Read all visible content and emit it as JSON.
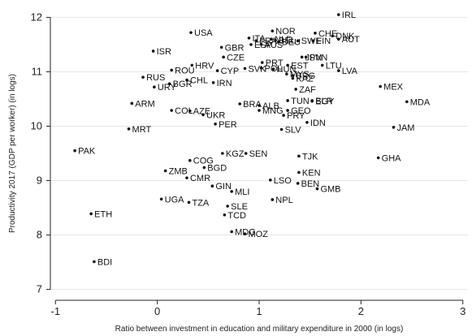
{
  "chart_data": {
    "type": "scatter",
    "title": "",
    "xlabel": "Ratio between investment in education and military expenditure in 2000 (in logs)",
    "ylabel": "Productivity 2017 (GDP per worker) (in logs)",
    "xlim": [
      -1.05,
      3.05
    ],
    "ylim": [
      6.8,
      12.2
    ],
    "xticks": [
      -1,
      0,
      1,
      2,
      3
    ],
    "yticks": [
      7,
      8,
      9,
      10,
      11,
      12
    ],
    "grid": true,
    "points": [
      {
        "label": "IRL",
        "x": 1.78,
        "y": 12.05
      },
      {
        "label": "NOR",
        "x": 1.13,
        "y": 11.75
      },
      {
        "label": "USA",
        "x": 0.33,
        "y": 11.72
      },
      {
        "label": "CHE",
        "x": 1.55,
        "y": 11.71
      },
      {
        "label": "DNK",
        "x": 1.72,
        "y": 11.66
      },
      {
        "label": "ITA",
        "x": 0.9,
        "y": 11.62
      },
      {
        "label": "NLD",
        "x": 1.12,
        "y": 11.6
      },
      {
        "label": "BEL",
        "x": 1.16,
        "y": 11.58
      },
      {
        "label": "AUT",
        "x": 1.78,
        "y": 11.6
      },
      {
        "label": "FRA",
        "x": 0.97,
        "y": 11.57
      },
      {
        "label": "SWE",
        "x": 1.38,
        "y": 11.57
      },
      {
        "label": "FIN",
        "x": 1.53,
        "y": 11.57
      },
      {
        "label": "DEU",
        "x": 1.19,
        "y": 11.55
      },
      {
        "label": "ESP",
        "x": 0.92,
        "y": 11.5
      },
      {
        "label": "AUS",
        "x": 1.02,
        "y": 11.5
      },
      {
        "label": "GBR",
        "x": 0.63,
        "y": 11.45
      },
      {
        "label": "ISR",
        "x": -0.04,
        "y": 11.38
      },
      {
        "label": "CZE",
        "x": 0.65,
        "y": 11.27
      },
      {
        "label": "SVN",
        "x": 1.46,
        "y": 11.27
      },
      {
        "label": "JPN",
        "x": 1.42,
        "y": 11.27
      },
      {
        "label": "PRT",
        "x": 1.03,
        "y": 11.17
      },
      {
        "label": "HRV",
        "x": 0.34,
        "y": 11.12
      },
      {
        "label": "EST",
        "x": 1.28,
        "y": 11.12
      },
      {
        "label": "LTU",
        "x": 1.62,
        "y": 11.12
      },
      {
        "label": "SVK",
        "x": 0.86,
        "y": 11.06
      },
      {
        "label": "POL",
        "x": 1.02,
        "y": 11.07
      },
      {
        "label": "HUN",
        "x": 1.14,
        "y": 11.05
      },
      {
        "label": "ROU",
        "x": 0.14,
        "y": 11.03
      },
      {
        "label": "CYP",
        "x": 0.59,
        "y": 11.02
      },
      {
        "label": "LVA",
        "x": 1.78,
        "y": 11.02
      },
      {
        "label": "MYS",
        "x": 1.27,
        "y": 10.96
      },
      {
        "label": "BRG",
        "x": 1.33,
        "y": 10.93
      },
      {
        "label": "KAZ",
        "x": 1.33,
        "y": 10.88
      },
      {
        "label": "RUS",
        "x": -0.14,
        "y": 10.9
      },
      {
        "label": "CHL",
        "x": 0.29,
        "y": 10.85
      },
      {
        "label": "BGR",
        "x": 0.12,
        "y": 10.78
      },
      {
        "label": "IRN",
        "x": 0.55,
        "y": 10.8
      },
      {
        "label": "URY",
        "x": -0.03,
        "y": 10.72
      },
      {
        "label": "MEX",
        "x": 2.19,
        "y": 10.73
      },
      {
        "label": "ZAF",
        "x": 1.36,
        "y": 10.68
      },
      {
        "label": "TUN",
        "x": 1.28,
        "y": 10.47
      },
      {
        "label": "BLR",
        "x": 1.52,
        "y": 10.47
      },
      {
        "label": "EGY",
        "x": 1.52,
        "y": 10.46
      },
      {
        "label": "MDA",
        "x": 2.45,
        "y": 10.45
      },
      {
        "label": "ARM",
        "x": -0.25,
        "y": 10.42
      },
      {
        "label": "BRA",
        "x": 0.81,
        "y": 10.41
      },
      {
        "label": "ALB",
        "x": 1.0,
        "y": 10.38
      },
      {
        "label": "AZE",
        "x": 0.32,
        "y": 10.28
      },
      {
        "label": "COL",
        "x": 0.14,
        "y": 10.29
      },
      {
        "label": "MNG",
        "x": 1.0,
        "y": 10.29
      },
      {
        "label": "GEO",
        "x": 1.28,
        "y": 10.29
      },
      {
        "label": "UKR",
        "x": 0.45,
        "y": 10.21
      },
      {
        "label": "PRY",
        "x": 1.24,
        "y": 10.2
      },
      {
        "label": "IDN",
        "x": 1.47,
        "y": 10.07
      },
      {
        "label": "PER",
        "x": 0.57,
        "y": 10.04
      },
      {
        "label": "JAM",
        "x": 2.32,
        "y": 9.98
      },
      {
        "label": "MRT",
        "x": -0.28,
        "y": 9.95
      },
      {
        "label": "SLV",
        "x": 1.22,
        "y": 9.94
      },
      {
        "label": "PAK",
        "x": -0.81,
        "y": 9.55
      },
      {
        "label": "KGZ",
        "x": 0.64,
        "y": 9.5
      },
      {
        "label": "SEN",
        "x": 0.87,
        "y": 9.5
      },
      {
        "label": "TJK",
        "x": 1.39,
        "y": 9.45
      },
      {
        "label": "GHA",
        "x": 2.17,
        "y": 9.42
      },
      {
        "label": "COG",
        "x": 0.32,
        "y": 9.37
      },
      {
        "label": "BGD",
        "x": 0.46,
        "y": 9.24
      },
      {
        "label": "ZMB",
        "x": 0.08,
        "y": 9.18
      },
      {
        "label": "KEN",
        "x": 1.39,
        "y": 9.15
      },
      {
        "label": "CMR",
        "x": 0.29,
        "y": 9.05
      },
      {
        "label": "LSO",
        "x": 1.11,
        "y": 9.01
      },
      {
        "label": "BEN",
        "x": 1.38,
        "y": 8.95
      },
      {
        "label": "GIN",
        "x": 0.54,
        "y": 8.9
      },
      {
        "label": "GMB",
        "x": 1.57,
        "y": 8.85
      },
      {
        "label": "MLI",
        "x": 0.73,
        "y": 8.8
      },
      {
        "label": "UGA",
        "x": 0.04,
        "y": 8.66
      },
      {
        "label": "NPL",
        "x": 1.13,
        "y": 8.65
      },
      {
        "label": "TZA",
        "x": 0.31,
        "y": 8.6
      },
      {
        "label": "SLE",
        "x": 0.69,
        "y": 8.53
      },
      {
        "label": "ETH",
        "x": -0.65,
        "y": 8.39
      },
      {
        "label": "TCD",
        "x": 0.66,
        "y": 8.37
      },
      {
        "label": "MDG",
        "x": 0.73,
        "y": 8.06
      },
      {
        "label": "MOZ",
        "x": 0.86,
        "y": 8.02
      },
      {
        "label": "BDI",
        "x": -0.62,
        "y": 7.51
      }
    ]
  }
}
